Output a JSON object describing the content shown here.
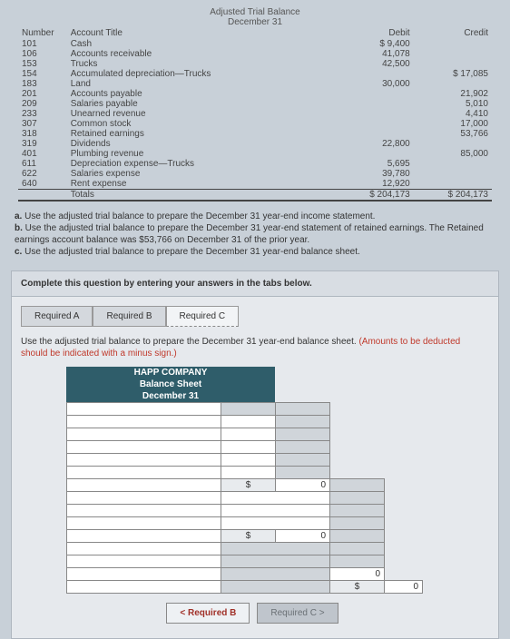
{
  "trial_balance": {
    "title1": "Adjusted Trial Balance",
    "title2": "December 31",
    "col_number": "Number",
    "col_account": "Account Title",
    "col_debit": "Debit",
    "col_credit": "Credit",
    "rows": [
      {
        "num": "101",
        "title": "Cash",
        "debit": "$ 9,400",
        "credit": ""
      },
      {
        "num": "106",
        "title": "Accounts receivable",
        "debit": "41,078",
        "credit": ""
      },
      {
        "num": "153",
        "title": "Trucks",
        "debit": "42,500",
        "credit": ""
      },
      {
        "num": "154",
        "title": "Accumulated depreciation—Trucks",
        "debit": "",
        "credit": "$ 17,085"
      },
      {
        "num": "183",
        "title": "Land",
        "debit": "30,000",
        "credit": ""
      },
      {
        "num": "201",
        "title": "Accounts payable",
        "debit": "",
        "credit": "21,902"
      },
      {
        "num": "209",
        "title": "Salaries payable",
        "debit": "",
        "credit": "5,010"
      },
      {
        "num": "233",
        "title": "Unearned revenue",
        "debit": "",
        "credit": "4,410"
      },
      {
        "num": "307",
        "title": "Common stock",
        "debit": "",
        "credit": "17,000"
      },
      {
        "num": "318",
        "title": "Retained earnings",
        "debit": "",
        "credit": "53,766"
      },
      {
        "num": "319",
        "title": "Dividends",
        "debit": "22,800",
        "credit": ""
      },
      {
        "num": "401",
        "title": "Plumbing revenue",
        "debit": "",
        "credit": "85,000"
      },
      {
        "num": "611",
        "title": "Depreciation expense—Trucks",
        "debit": "5,695",
        "credit": ""
      },
      {
        "num": "622",
        "title": "Salaries expense",
        "debit": "39,780",
        "credit": ""
      },
      {
        "num": "640",
        "title": "Rent expense",
        "debit": "12,920",
        "credit": ""
      }
    ],
    "totals_label": "Totals",
    "totals_debit": "$ 204,173",
    "totals_credit": "$ 204,173"
  },
  "instructions": {
    "a_bold": "a.",
    "a": " Use the adjusted trial balance to prepare the December 31 year-end income statement.",
    "b_bold": "b.",
    "b": " Use the adjusted trial balance to prepare the December 31 year-end statement of retained earnings. The Retained earnings account balance was $53,766 on December 31 of the prior year.",
    "c_bold": "c.",
    "c": " Use the adjusted trial balance to prepare the December 31 year-end balance sheet."
  },
  "complete": "Complete this question by entering your answers in the tabs below.",
  "tabs": {
    "a": "Required A",
    "b": "Required B",
    "c": "Required C"
  },
  "tab_instr": {
    "main": "Use the adjusted trial balance to prepare the December 31 year-end balance sheet. ",
    "red": "(Amounts to be deducted should be indicated with a minus sign.)"
  },
  "sheet": {
    "company": "HAPP COMPANY",
    "title": "Balance Sheet",
    "date": "December 31"
  },
  "dollar": "$",
  "zero": "0",
  "nav": {
    "prev": "< Required B",
    "next": "Required C >"
  }
}
